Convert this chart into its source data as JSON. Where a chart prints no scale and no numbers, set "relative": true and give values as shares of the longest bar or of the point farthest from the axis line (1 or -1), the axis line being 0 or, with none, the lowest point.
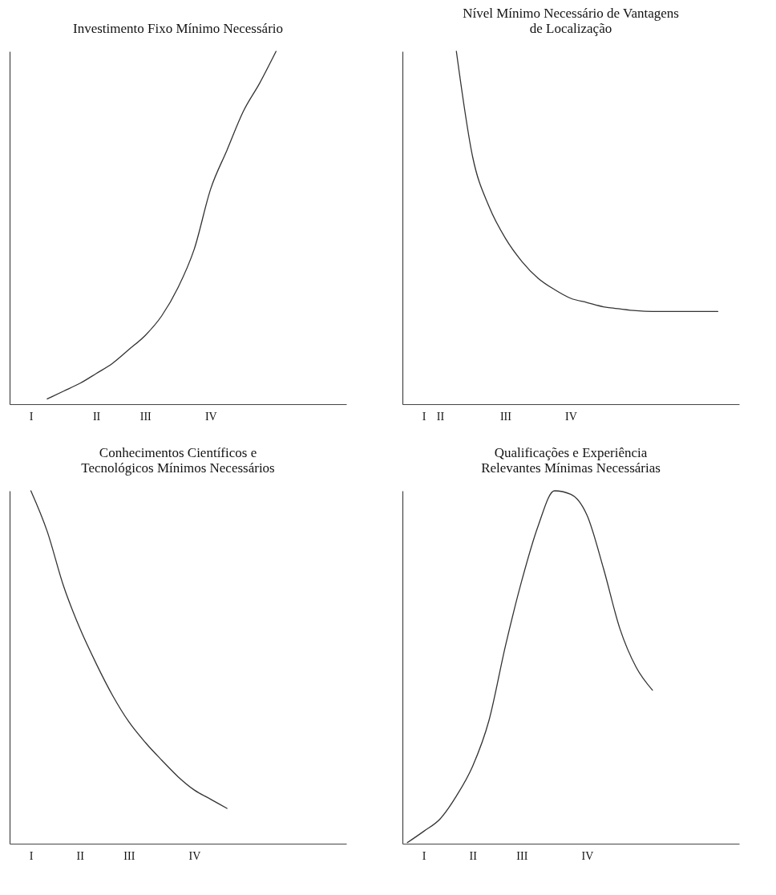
{
  "chart_data": [
    {
      "type": "line",
      "title": "Investimento Fixo Mínimo Necessário",
      "relative": true,
      "tick_labels": "x",
      "grid": false,
      "marker": "none",
      "line_style": "solid",
      "categories": [
        null,
        "I",
        null,
        null,
        null,
        "II",
        null,
        null,
        "III",
        null,
        null,
        null,
        "IV",
        null,
        null,
        null,
        null,
        null,
        null,
        null,
        null
      ],
      "series": [
        {
          "color": "#333333",
          "values": [
            null,
            null,
            0.015,
            0.037,
            0.059,
            0.087,
            0.116,
            0.155,
            0.195,
            0.25,
            0.33,
            0.44,
            0.61,
            0.72,
            0.83,
            0.91,
            1.0,
            null,
            null,
            null,
            null
          ]
        }
      ]
    },
    {
      "type": "line",
      "title": "Nível Mínimo Necessário de Vantagens\nde Localização",
      "relative": true,
      "tick_labels": "x",
      "grid": false,
      "marker": "none",
      "line_style": "solid",
      "categories": [
        null,
        "I",
        "II",
        null,
        null,
        null,
        "III",
        null,
        null,
        null,
        "IV",
        null,
        null,
        null,
        null,
        null,
        null,
        null,
        null,
        null,
        null
      ],
      "series": [
        {
          "color": "#333333",
          "values": [
            null,
            null,
            null,
            1.0,
            0.7,
            0.56,
            0.47,
            0.405,
            0.357,
            0.325,
            0.3,
            0.288,
            0.276,
            0.27,
            0.265,
            0.263,
            0.263,
            0.263,
            0.263,
            0.263,
            null
          ]
        }
      ]
    },
    {
      "type": "line",
      "title": "Conhecimentos Científicos e\nTecnológicos Mínimos Necessários",
      "relative": true,
      "tick_labels": "x",
      "grid": false,
      "marker": "none",
      "line_style": "solid",
      "categories": [
        null,
        "I",
        null,
        null,
        "II",
        null,
        null,
        "III",
        null,
        null,
        null,
        "IV",
        null,
        null,
        null,
        null,
        null,
        null,
        null,
        null,
        null
      ],
      "series": [
        {
          "color": "#333333",
          "values": [
            null,
            1.0,
            0.885,
            0.73,
            0.61,
            0.51,
            0.42,
            0.345,
            0.287,
            0.237,
            0.19,
            0.152,
            0.126,
            0.1,
            null,
            null,
            null,
            null,
            null,
            null,
            null
          ]
        }
      ]
    },
    {
      "type": "line",
      "title": "Qualificações e Experiência\nRelevantes Mínimas Necessárias",
      "relative": true,
      "tick_labels": "x",
      "grid": false,
      "marker": "none",
      "line_style": "solid",
      "categories": [
        null,
        "I",
        null,
        null,
        "II",
        null,
        null,
        "III",
        null,
        null,
        null,
        "IV",
        null,
        null,
        null,
        null,
        null,
        null,
        null,
        null,
        null
      ],
      "series": [
        {
          "color": "#333333",
          "values": [
            0.003,
            0.035,
            0.07,
            0.135,
            0.22,
            0.35,
            0.56,
            0.745,
            0.9,
            1.0,
            0.99,
            0.93,
            0.78,
            0.61,
            0.5,
            0.435,
            null,
            null,
            null,
            null,
            null
          ]
        }
      ]
    }
  ]
}
